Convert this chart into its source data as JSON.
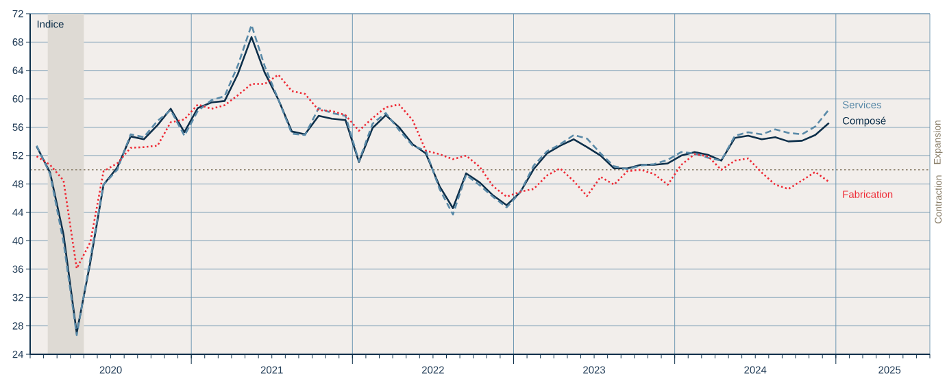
{
  "chart_data": {
    "type": "line",
    "ylabel": "Indice",
    "x": [
      "2020-01-16",
      "2020-02-15",
      "2020-03-16",
      "2020-04-15",
      "2020-05-16",
      "2020-06-15",
      "2020-07-16",
      "2020-08-16",
      "2020-09-15",
      "2020-10-16",
      "2020-11-15",
      "2020-12-16",
      "2021-01-16",
      "2021-02-15",
      "2021-03-16",
      "2021-04-15",
      "2021-05-16",
      "2021-06-15",
      "2021-07-16",
      "2021-08-16",
      "2021-09-15",
      "2021-10-16",
      "2021-11-15",
      "2021-12-16",
      "2022-01-16",
      "2022-02-15",
      "2022-03-16",
      "2022-04-15",
      "2022-05-16",
      "2022-06-15",
      "2022-07-16",
      "2022-08-16",
      "2022-09-15",
      "2022-10-16",
      "2022-11-15",
      "2022-12-16",
      "2023-01-16",
      "2023-02-15",
      "2023-03-16",
      "2023-04-15",
      "2023-05-16",
      "2023-06-15",
      "2023-07-16",
      "2023-08-16",
      "2023-09-15",
      "2023-10-16",
      "2023-11-15",
      "2023-12-16",
      "2024-01-16",
      "2024-02-15",
      "2024-03-16",
      "2024-04-15",
      "2024-05-16",
      "2024-06-15",
      "2024-07-16",
      "2024-08-16",
      "2024-09-15",
      "2024-10-16",
      "2024-11-15",
      "2024-12-16"
    ],
    "series": [
      {
        "name": "Composé",
        "color": "#0d2f4a",
        "line_style": "solid",
        "values": [
          53.3,
          49.6,
          40.9,
          27.0,
          37.0,
          47.9,
          50.3,
          54.7,
          54.3,
          56.3,
          58.6,
          55.3,
          58.7,
          59.5,
          59.7,
          63.5,
          68.7,
          63.7,
          59.9,
          55.4,
          55.0,
          57.6,
          57.2,
          57.0,
          51.1,
          55.9,
          57.7,
          56.0,
          53.6,
          52.3,
          47.7,
          44.6,
          49.5,
          48.2,
          46.4,
          45.0,
          46.8,
          50.1,
          52.3,
          53.4,
          54.3,
          53.2,
          52.0,
          50.2,
          50.2,
          50.7,
          50.7,
          50.9,
          52.0,
          52.5,
          52.1,
          51.3,
          54.5,
          54.8,
          54.3,
          54.6,
          54.0,
          54.1,
          54.9,
          56.6
        ]
      },
      {
        "name": "Services",
        "color": "#5a8aa8",
        "line_style": "dashed",
        "values": [
          53.4,
          49.4,
          39.8,
          26.7,
          37.5,
          47.9,
          50.0,
          55.0,
          54.6,
          56.9,
          58.4,
          54.8,
          58.3,
          59.8,
          60.4,
          64.7,
          70.4,
          64.6,
          59.9,
          55.1,
          54.9,
          58.7,
          58.0,
          57.6,
          51.2,
          56.5,
          58.0,
          55.6,
          53.4,
          52.7,
          47.3,
          43.7,
          49.3,
          47.8,
          46.2,
          44.7,
          46.8,
          50.6,
          52.6,
          53.6,
          54.9,
          54.4,
          52.3,
          50.5,
          50.1,
          50.6,
          50.8,
          51.4,
          52.5,
          52.3,
          51.7,
          51.3,
          54.8,
          55.3,
          55.0,
          55.7,
          55.2,
          55.0,
          56.1,
          58.5
        ]
      },
      {
        "name": "Fabrication",
        "color": "#ee2a35",
        "line_style": "dotted",
        "values": [
          51.9,
          50.7,
          48.5,
          36.1,
          39.8,
          49.8,
          50.9,
          53.1,
          53.2,
          53.4,
          56.7,
          57.1,
          59.2,
          58.6,
          59.1,
          60.5,
          62.1,
          62.1,
          63.4,
          61.1,
          60.7,
          58.4,
          58.3,
          57.7,
          55.5,
          57.3,
          58.8,
          59.2,
          57.0,
          52.7,
          52.2,
          51.5,
          52.0,
          50.4,
          47.7,
          46.2,
          46.9,
          47.3,
          49.2,
          50.2,
          48.4,
          46.3,
          49.0,
          47.9,
          49.8,
          50.0,
          49.4,
          47.9,
          50.7,
          52.2,
          51.9,
          50.0,
          51.3,
          51.6,
          49.6,
          47.9,
          47.3,
          48.5,
          49.7,
          48.3
        ]
      }
    ],
    "xlim": [
      "2020-01-01",
      "2025-08-01"
    ],
    "xticks": [
      {
        "value": "2020-01-01",
        "label": null
      },
      {
        "value": "2020-02-01",
        "label": null
      },
      {
        "value": "2020-03-01",
        "label": null
      },
      {
        "value": "2020-04-01",
        "label": null
      },
      {
        "value": "2020-05-01",
        "label": null
      },
      {
        "value": "2020-06-01",
        "label": null
      },
      {
        "value": "2020-07-01",
        "label": "2020"
      },
      {
        "value": "2020-08-01",
        "label": null
      },
      {
        "value": "2020-09-01",
        "label": null
      },
      {
        "value": "2020-10-01",
        "label": null
      },
      {
        "value": "2020-11-01",
        "label": null
      },
      {
        "value": "2020-12-01",
        "label": null
      },
      {
        "value": "2021-01-01",
        "label": null
      },
      {
        "value": "2021-02-01",
        "label": null
      },
      {
        "value": "2021-03-01",
        "label": null
      },
      {
        "value": "2021-04-01",
        "label": null
      },
      {
        "value": "2021-05-01",
        "label": null
      },
      {
        "value": "2021-06-01",
        "label": null
      },
      {
        "value": "2021-07-01",
        "label": "2021"
      },
      {
        "value": "2021-08-01",
        "label": null
      },
      {
        "value": "2021-09-01",
        "label": null
      },
      {
        "value": "2021-10-01",
        "label": null
      },
      {
        "value": "2021-11-01",
        "label": null
      },
      {
        "value": "2021-12-01",
        "label": null
      },
      {
        "value": "2022-01-01",
        "label": null
      },
      {
        "value": "2022-02-01",
        "label": null
      },
      {
        "value": "2022-03-01",
        "label": null
      },
      {
        "value": "2022-04-01",
        "label": null
      },
      {
        "value": "2022-05-01",
        "label": null
      },
      {
        "value": "2022-06-01",
        "label": null
      },
      {
        "value": "2022-07-01",
        "label": "2022"
      },
      {
        "value": "2022-08-01",
        "label": null
      },
      {
        "value": "2022-09-01",
        "label": null
      },
      {
        "value": "2022-10-01",
        "label": null
      },
      {
        "value": "2022-11-01",
        "label": null
      },
      {
        "value": "2022-12-01",
        "label": null
      },
      {
        "value": "2023-01-01",
        "label": null
      },
      {
        "value": "2023-02-01",
        "label": null
      },
      {
        "value": "2023-03-01",
        "label": null
      },
      {
        "value": "2023-04-01",
        "label": null
      },
      {
        "value": "2023-05-01",
        "label": null
      },
      {
        "value": "2023-06-01",
        "label": null
      },
      {
        "value": "2023-07-01",
        "label": "2023"
      },
      {
        "value": "2023-08-01",
        "label": null
      },
      {
        "value": "2023-09-01",
        "label": null
      },
      {
        "value": "2023-10-01",
        "label": null
      },
      {
        "value": "2023-11-01",
        "label": null
      },
      {
        "value": "2023-12-01",
        "label": null
      },
      {
        "value": "2024-01-01",
        "label": null
      },
      {
        "value": "2024-02-01",
        "label": null
      },
      {
        "value": "2024-03-01",
        "label": null
      },
      {
        "value": "2024-04-01",
        "label": null
      },
      {
        "value": "2024-05-01",
        "label": null
      },
      {
        "value": "2024-06-01",
        "label": null
      },
      {
        "value": "2024-07-01",
        "label": "2024"
      },
      {
        "value": "2024-08-01",
        "label": null
      },
      {
        "value": "2024-09-01",
        "label": null
      },
      {
        "value": "2024-10-01",
        "label": null
      },
      {
        "value": "2024-11-01",
        "label": null
      },
      {
        "value": "2024-12-01",
        "label": null
      },
      {
        "value": "2025-01-01",
        "label": null
      },
      {
        "value": "2025-02-01",
        "label": null
      },
      {
        "value": "2025-03-01",
        "label": null
      },
      {
        "value": "2025-04-01",
        "label": null
      },
      {
        "value": "2025-05-01",
        "label": "2025"
      },
      {
        "value": "2025-06-01",
        "label": null
      },
      {
        "value": "2025-07-01",
        "label": null
      },
      {
        "value": "2025-08-01",
        "label": null
      }
    ],
    "ylim": [
      24,
      72
    ],
    "yticks": [
      24,
      28,
      32,
      36,
      40,
      44,
      48,
      52,
      56,
      60,
      64,
      68,
      72
    ],
    "grid": "y",
    "legend": false,
    "marker": "none",
    "ref_lines": [
      {
        "axis": "y",
        "value": 50,
        "color": "#8a7f6a",
        "line_style": "dotted"
      },
      {
        "axis": "x",
        "value": "2021-01-01",
        "color": "#6f98b3"
      },
      {
        "axis": "x",
        "value": "2022-01-01",
        "color": "#6f98b3"
      },
      {
        "axis": "x",
        "value": "2023-01-01",
        "color": "#6f98b3"
      },
      {
        "axis": "x",
        "value": "2024-01-01",
        "color": "#6f98b3"
      },
      {
        "axis": "x",
        "value": "2025-01-01",
        "color": "#6f98b3"
      }
    ],
    "bands": [
      {
        "axis": "x",
        "from": "2020-02-10",
        "to": "2020-05-01",
        "color": "#dedad4"
      }
    ],
    "annotations": [
      "Contraction",
      "Expansion"
    ]
  }
}
